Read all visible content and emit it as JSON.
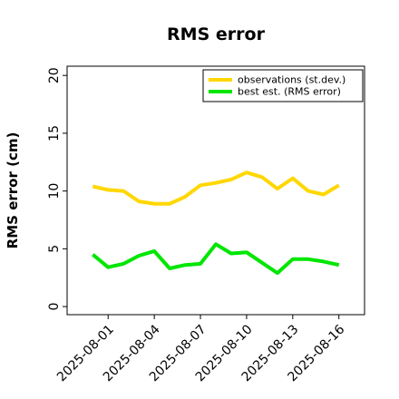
{
  "chart_data": {
    "type": "line",
    "title": "RMS error",
    "y_label": "RMS error (cm)",
    "x": [
      "2025-07-31",
      "2025-08-01",
      "2025-08-02",
      "2025-08-03",
      "2025-08-04",
      "2025-08-05",
      "2025-08-06",
      "2025-08-07",
      "2025-08-08",
      "2025-08-09",
      "2025-08-10",
      "2025-08-11",
      "2025-08-12",
      "2025-08-13",
      "2025-08-14",
      "2025-08-15",
      "2025-08-16"
    ],
    "series": [
      {
        "name": "observations (st.dev.)",
        "color": "#ffd700",
        "values": [
          10.4,
          10.1,
          10.0,
          9.1,
          8.9,
          8.9,
          9.5,
          10.5,
          10.7,
          11.0,
          11.6,
          11.2,
          10.2,
          11.1,
          10.0,
          9.7,
          10.5
        ]
      },
      {
        "name": "best est. (RMS error)",
        "color": "#00e600",
        "values": [
          4.5,
          3.4,
          3.7,
          4.4,
          4.8,
          3.3,
          3.6,
          3.7,
          5.4,
          4.6,
          4.7,
          3.8,
          2.9,
          4.1,
          4.1,
          3.9,
          3.6
        ]
      }
    ],
    "xlim": [
      "2025-07-29T08:00",
      "2025-08-17T16:00"
    ],
    "xticks": [
      "2025-08-01",
      "2025-08-04",
      "2025-08-07",
      "2025-08-10",
      "2025-08-13",
      "2025-08-16"
    ],
    "xtick_label_colors": [
      "#000000",
      "#000000",
      "#228b22",
      "#000000",
      "#000000",
      "#000000"
    ],
    "ylim": [
      -0.7,
      20.8
    ],
    "yticks": [
      0,
      5,
      10,
      15,
      20
    ],
    "grid": false,
    "legend": "upper right"
  }
}
